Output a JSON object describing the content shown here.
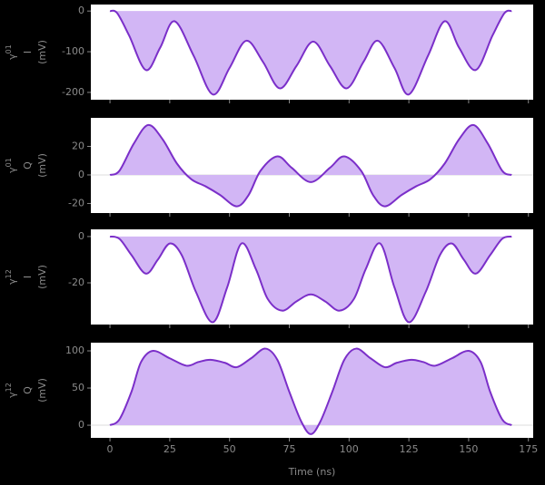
{
  "chart_data": [
    {
      "type": "line",
      "color": "#7b2fc9",
      "fill": "#d2b6f5",
      "ylabel": {
        "symbol": "γ",
        "sup": "01",
        "component": "I",
        "unit": "(mV)"
      },
      "x": [
        0,
        3,
        8,
        15,
        21,
        27,
        35,
        43,
        50,
        57,
        64,
        71,
        78,
        85,
        92,
        99,
        106,
        112,
        119,
        125,
        133,
        140,
        146,
        153,
        160,
        165,
        168
      ],
      "values": [
        0,
        -5,
        -60,
        -145,
        -90,
        -25,
        -110,
        -205,
        -140,
        -73,
        -125,
        -190,
        -135,
        -75,
        -135,
        -190,
        -125,
        -73,
        -140,
        -205,
        -110,
        -25,
        -90,
        -145,
        -60,
        -5,
        0
      ],
      "xlim": [
        -8,
        177
      ],
      "ylim": [
        -218,
        16
      ],
      "yticks": [
        -200,
        -100,
        0
      ]
    },
    {
      "type": "line",
      "color": "#7b2fc9",
      "fill": "#d2b6f5",
      "ylabel": {
        "symbol": "γ",
        "sup": "01",
        "component": "Q",
        "unit": "(mV)"
      },
      "x": [
        0,
        4,
        10,
        16,
        22,
        28,
        34,
        40,
        46,
        53,
        58,
        63,
        70,
        76,
        84,
        92,
        98,
        105,
        110,
        115,
        122,
        128,
        134,
        140,
        146,
        152,
        158,
        164,
        168
      ],
      "values": [
        0,
        3,
        22,
        35,
        25,
        8,
        -3,
        -8,
        -14,
        -22,
        -14,
        3,
        13,
        5,
        -5,
        5,
        13,
        3,
        -14,
        -22,
        -14,
        -8,
        -3,
        8,
        25,
        35,
        22,
        3,
        0
      ],
      "xlim": [
        -8,
        177
      ],
      "ylim": [
        -26.7,
        40
      ],
      "yticks": [
        -20,
        0,
        20
      ],
      "zero_line": true
    },
    {
      "type": "line",
      "color": "#7b2fc9",
      "fill": "#d2b6f5",
      "ylabel": {
        "symbol": "γ",
        "sup": "12",
        "component": "I",
        "unit": "(mV)"
      },
      "x": [
        0,
        4,
        9,
        15,
        20,
        25,
        30,
        36,
        43,
        49,
        55,
        61,
        66,
        72,
        78,
        84,
        90,
        96,
        102,
        107,
        113,
        119,
        125,
        132,
        138,
        143,
        148,
        153,
        159,
        164,
        168
      ],
      "values": [
        0,
        -1,
        -8,
        -16,
        -10,
        -3,
        -8,
        -24,
        -37,
        -22,
        -3,
        -14,
        -27,
        -32,
        -28,
        -25,
        -28,
        -32,
        -27,
        -14,
        -3,
        -22,
        -37,
        -24,
        -8,
        -3,
        -10,
        -16,
        -8,
        -1,
        0
      ],
      "xlim": [
        -8,
        177
      ],
      "ylim": [
        -38,
        3.1
      ],
      "yticks": [
        -20,
        0
      ]
    },
    {
      "type": "line",
      "color": "#7b2fc9",
      "fill": "#d2b6f5",
      "ylabel": {
        "symbol": "γ",
        "sup": "12",
        "component": "Q",
        "unit": "(mV)"
      },
      "x": [
        0,
        4,
        9,
        13,
        18,
        25,
        32,
        37,
        42,
        48,
        53,
        59,
        65,
        70,
        75,
        80,
        84,
        88,
        93,
        98,
        103,
        109,
        115,
        120,
        126,
        131,
        136,
        143,
        150,
        155,
        159,
        164,
        168
      ],
      "values": [
        0,
        8,
        45,
        85,
        100,
        90,
        80,
        85,
        88,
        84,
        78,
        90,
        103,
        88,
        45,
        5,
        -12,
        5,
        45,
        88,
        103,
        90,
        78,
        84,
        88,
        85,
        80,
        90,
        100,
        85,
        45,
        8,
        0
      ],
      "xlim": [
        -8,
        177
      ],
      "ylim": [
        -17,
        111
      ],
      "yticks": [
        0,
        50,
        100
      ],
      "zero_line": true,
      "xlabel": "Time (ns)",
      "xticks": [
        0,
        25,
        50,
        75,
        100,
        125,
        150,
        175
      ]
    }
  ]
}
